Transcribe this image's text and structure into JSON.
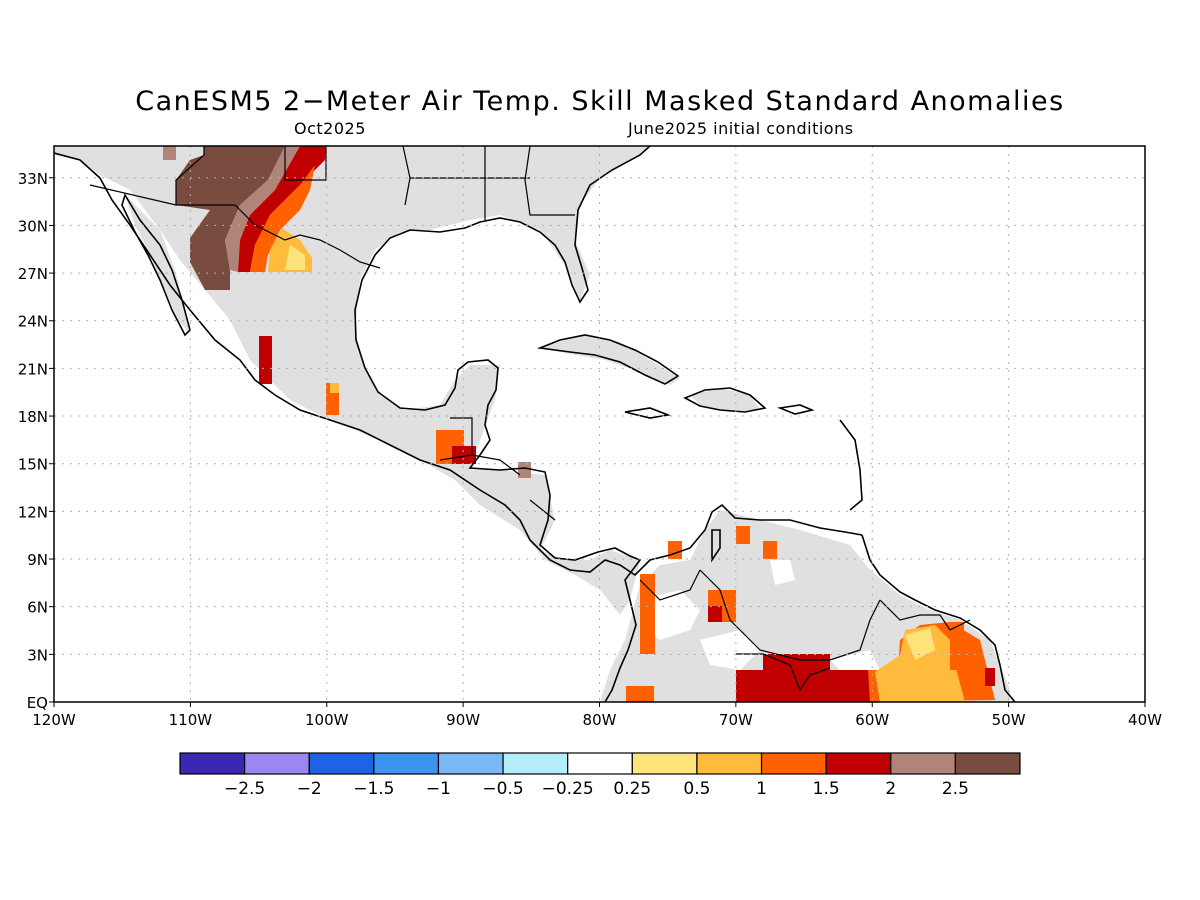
{
  "header": {
    "title": "CanESM5 2−Meter Air Temp. Skill Masked Standard Anomalies",
    "target_month": "Oct2025",
    "initial_conditions": "June2025 initial conditions"
  },
  "map": {
    "lon_range": [
      -120,
      -40
    ],
    "lat_range": [
      0,
      35
    ],
    "lon_ticks": [
      "120W",
      "110W",
      "100W",
      "90W",
      "80W",
      "70W",
      "60W",
      "50W",
      "40W"
    ],
    "lat_ticks": [
      "EQ",
      "3N",
      "6N",
      "9N",
      "12N",
      "15N",
      "18N",
      "21N",
      "24N",
      "27N",
      "30N",
      "33N"
    ],
    "land_mask_color": "#e0e0e0",
    "coast_color": "#000000"
  },
  "colorbar": {
    "labels": [
      "−2.5",
      "−2",
      "−1.5",
      "−1",
      "−0.5",
      "−0.25",
      "0.25",
      "0.5",
      "1",
      "1.5",
      "2",
      "2.5"
    ],
    "colors": [
      "#3a28b4",
      "#9c87f2",
      "#1e63e6",
      "#3a94f0",
      "#78b8f4",
      "#b4eefa",
      "#ffffff",
      "#ffe47c",
      "#ffbc3c",
      "#ff6000",
      "#c00000",
      "#b08478",
      "#7a4b3f"
    ]
  },
  "anomaly_regions": [
    {
      "name": "sw-us-high",
      "color": "#7a4b3f"
    },
    {
      "name": "sw-us-mid",
      "color": "#b08478"
    },
    {
      "name": "sw-us-strong",
      "color": "#c00000"
    },
    {
      "name": "sw-us-orange",
      "color": "#ff6000"
    },
    {
      "name": "sw-us-yellow",
      "color": "#ffbc3c"
    },
    {
      "name": "guianas-strong",
      "color": "#c00000"
    },
    {
      "name": "guianas-orange",
      "color": "#ff6000"
    },
    {
      "name": "guianas-yellow",
      "color": "#ffbc3c"
    }
  ]
}
